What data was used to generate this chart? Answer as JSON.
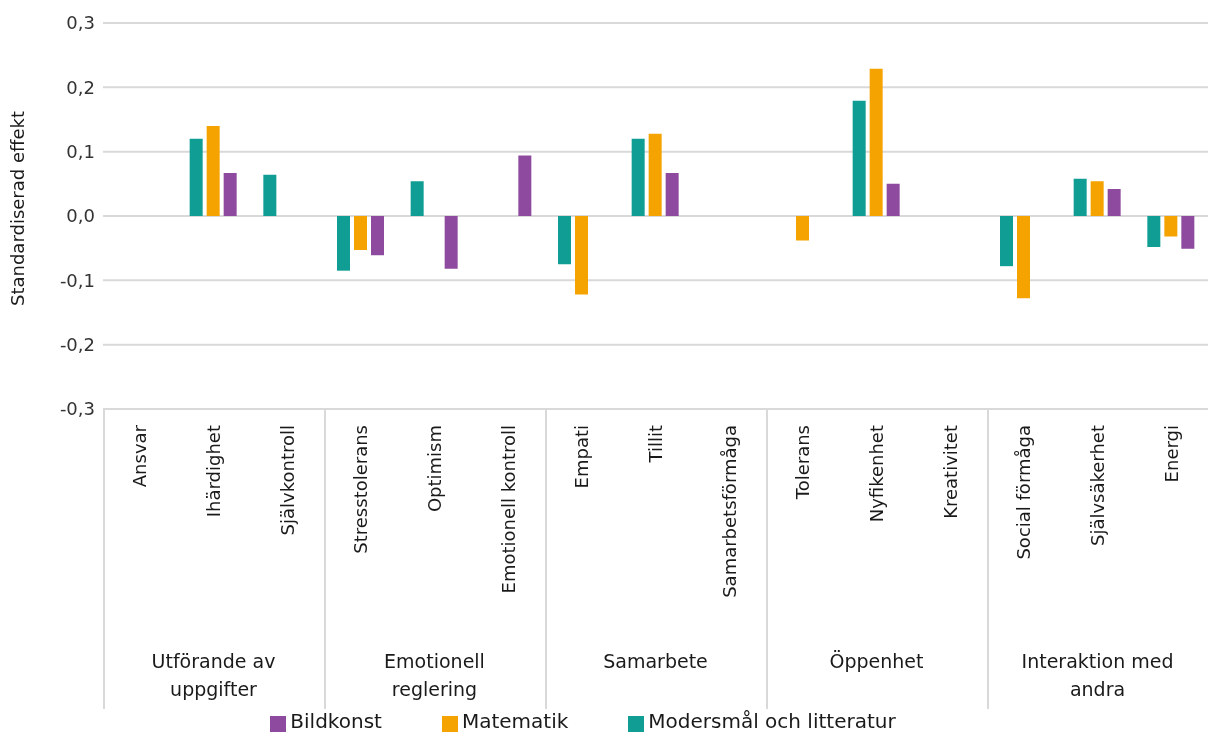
{
  "chart_data": {
    "type": "bar",
    "ylabel": "Standardiserad effekt",
    "categories": [
      "Ansvar",
      "Ihärdighet",
      "Självkontroll",
      "Stresstolerans",
      "Optimism",
      "Emotionell kontroll",
      "Empati",
      "Tillit",
      "Samarbetsförmåga",
      "Tolerans",
      "Nyfikenhet",
      "Kreativitet",
      "Social förmåga",
      "Självsäkerhet",
      "Energi"
    ],
    "series": [
      {
        "name": "Modersmål och litteratur",
        "color": "#109e94",
        "values": [
          null,
          0.12,
          0.064,
          -0.085,
          0.054,
          null,
          -0.075,
          0.12,
          null,
          null,
          0.179,
          null,
          -0.078,
          0.058,
          -0.048
        ]
      },
      {
        "name": "Matematik",
        "color": "#f5a300",
        "values": [
          null,
          0.14,
          null,
          -0.053,
          null,
          null,
          -0.122,
          0.128,
          null,
          -0.038,
          0.229,
          null,
          -0.128,
          0.054,
          -0.032
        ]
      },
      {
        "name": "Bildkonst",
        "color": "#8e4a9e",
        "values": [
          null,
          0.067,
          null,
          -0.061,
          -0.082,
          0.094,
          null,
          0.067,
          null,
          null,
          0.05,
          null,
          null,
          0.042,
          -0.051
        ]
      }
    ],
    "ylim": [
      -0.3,
      0.3
    ],
    "yticks": [
      {
        "value": -0.3,
        "label": "-0,3"
      },
      {
        "value": -0.2,
        "label": "-0,2"
      },
      {
        "value": -0.1,
        "label": "-0,1"
      },
      {
        "value": 0,
        "label": "0,0"
      },
      {
        "value": 0.1,
        "label": "0,1"
      },
      {
        "value": 0.2,
        "label": "0,2"
      },
      {
        "value": 0.3,
        "label": "0,3"
      }
    ],
    "grid": "y",
    "legend": "bottom",
    "annotations": [
      "Utförande av uppgifter",
      "Emotionell reglering",
      "Samarbete",
      "Öppenhet",
      "Interaktion med andra"
    ]
  }
}
